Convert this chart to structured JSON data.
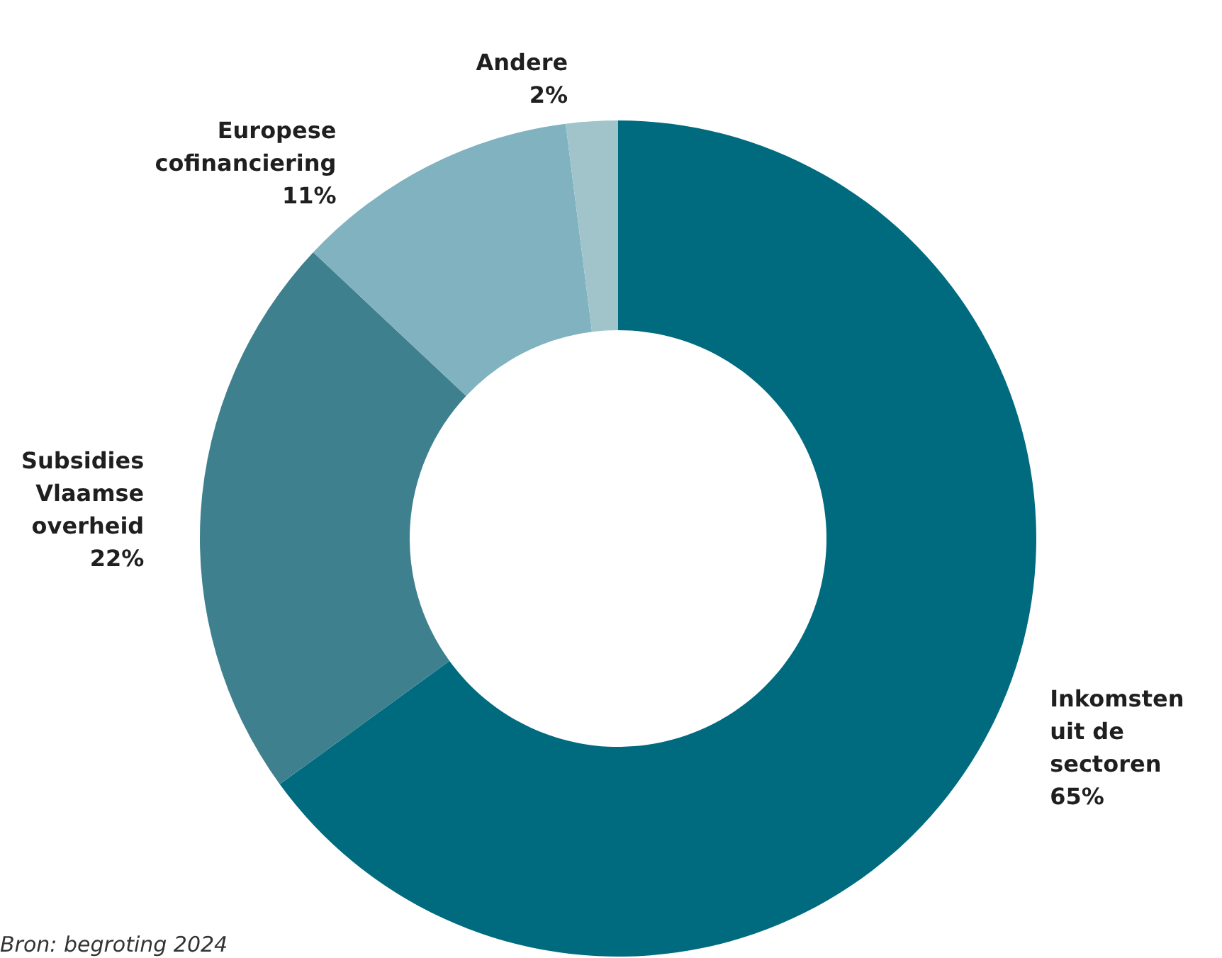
{
  "chart_data": {
    "type": "donut",
    "categories": [
      "Inkomsten uit de sectoren",
      "Subsidies Vlaamse overheid",
      "Europese cofinanciering",
      "Andere"
    ],
    "values": [
      65,
      22,
      11,
      2
    ],
    "value_labels": [
      "65%",
      "22%",
      "11%",
      "2%"
    ],
    "colors": [
      "#006b7f",
      "#3f808f",
      "#80b3bf",
      "#a0c4c9"
    ],
    "annotations": [
      "Bron: begroting 2024"
    ],
    "legend": false
  }
}
